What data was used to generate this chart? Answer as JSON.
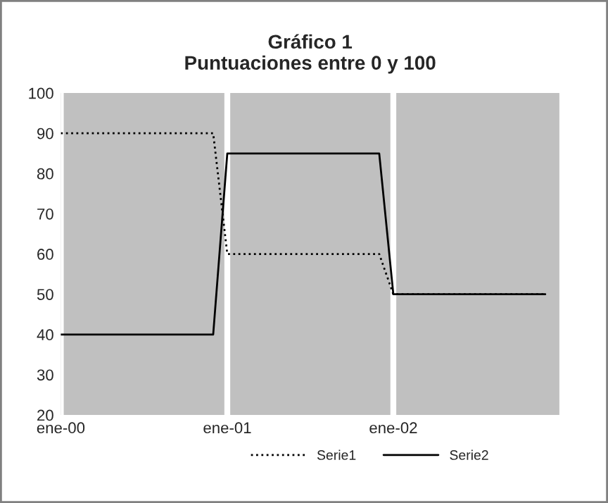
{
  "chart_data": {
    "type": "line",
    "title": "Gráfico 1\nPuntuaciones entre 0 y 100",
    "series": [
      {
        "name": "Serie1",
        "color": "#000000",
        "line_style": "dotted",
        "x": [
          "2000-01",
          "2000-12",
          "2001-01",
          "2001-12",
          "2002-01",
          "2002-12"
        ],
        "values": [
          90,
          90,
          60,
          60,
          50,
          50
        ]
      },
      {
        "name": "Serie2",
        "color": "#000000",
        "line_style": "solid",
        "x": [
          "2000-01",
          "2000-12",
          "2001-01",
          "2001-12",
          "2002-01",
          "2002-12"
        ],
        "values": [
          40,
          40,
          85,
          85,
          50,
          50
        ]
      }
    ],
    "xlim": [
      "2000-01",
      "2003-01"
    ],
    "xticks": [
      {
        "value": "2000-01",
        "label": "ene-00"
      },
      {
        "value": "2001-01",
        "label": "ene-01"
      },
      {
        "value": "2002-01",
        "label": "ene-02"
      }
    ],
    "ylim": [
      20,
      100
    ],
    "yticks": [
      20,
      30,
      40,
      50,
      60,
      70,
      80,
      90,
      100
    ],
    "grid": "x",
    "legend": "bottom",
    "marker": "none"
  }
}
